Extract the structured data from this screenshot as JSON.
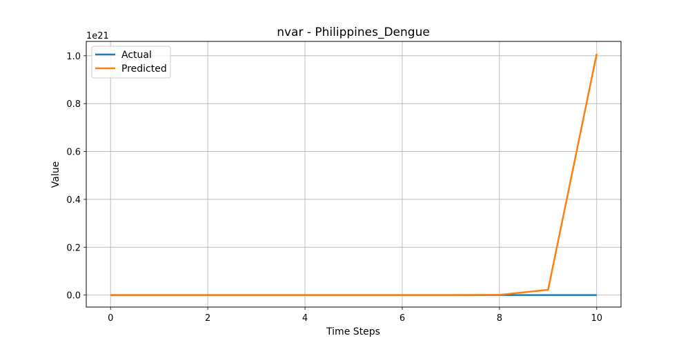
{
  "chart_data": {
    "type": "line",
    "title": "nvar - Philippines_Dengue",
    "xlabel": "Time Steps",
    "ylabel": "Value",
    "y_offset_label": "1e21",
    "y_scale_exponent": 21,
    "xlim": [
      -0.5,
      10.5
    ],
    "ylim": [
      -0.05,
      1.06
    ],
    "x_ticks": [
      0,
      2,
      4,
      6,
      8,
      10
    ],
    "x_tick_labels": [
      "0",
      "2",
      "4",
      "6",
      "8",
      "10"
    ],
    "y_ticks": [
      0.0,
      0.2,
      0.4,
      0.6,
      0.8,
      1.0
    ],
    "y_tick_labels": [
      "0.0",
      "0.2",
      "0.4",
      "0.6",
      "0.8",
      "1.0"
    ],
    "grid": true,
    "legend_position": "top-left",
    "x": [
      0,
      1,
      2,
      3,
      4,
      5,
      6,
      7,
      8,
      9,
      10
    ],
    "series": [
      {
        "name": "Actual",
        "color": "#1f77b4",
        "values": [
          0,
          0,
          0,
          0,
          0,
          0,
          0,
          0,
          0,
          0,
          0
        ]
      },
      {
        "name": "Predicted",
        "color": "#ff7f0e",
        "values": [
          0,
          0,
          0,
          0,
          0,
          0,
          0,
          0,
          0.001,
          0.022,
          1.008
        ]
      }
    ]
  }
}
